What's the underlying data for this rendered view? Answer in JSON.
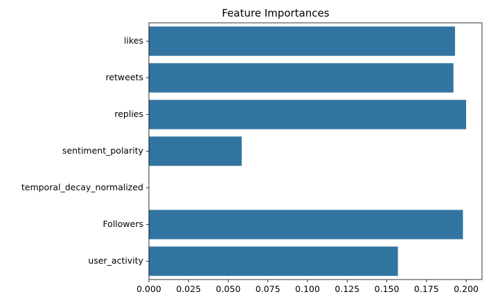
{
  "chart_data": {
    "type": "bar",
    "orientation": "horizontal",
    "title": "Feature Importances",
    "xlabel": "",
    "ylabel": "",
    "categories": [
      "likes",
      "retweets",
      "replies",
      "sentiment_polarity",
      "temporal_decay_normalized",
      "Followers",
      "user_activity"
    ],
    "values": [
      0.193,
      0.192,
      0.2,
      0.0585,
      0.0,
      0.198,
      0.157
    ],
    "xlim": [
      0,
      0.21
    ],
    "xticks": [
      "0.000",
      "0.025",
      "0.050",
      "0.075",
      "0.100",
      "0.125",
      "0.150",
      "0.175",
      "0.200"
    ],
    "grid": false,
    "bar_color": "#3274a1"
  }
}
